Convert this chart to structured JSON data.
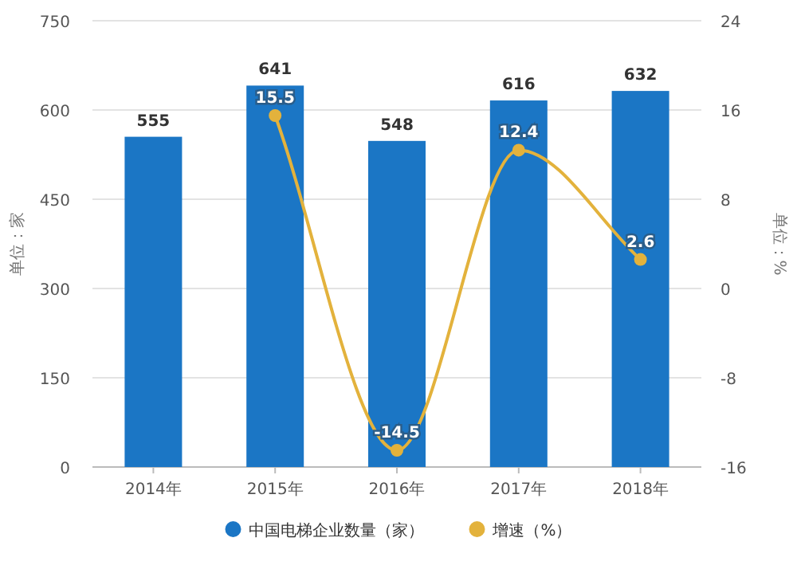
{
  "chart_data": {
    "type": "bar",
    "categories": [
      "2014年",
      "2015年",
      "2016年",
      "2017年",
      "2018年"
    ],
    "series": [
      {
        "name": "中国电梯企业数量（家）",
        "color": "#1b76c5",
        "values": [
          555,
          641,
          548,
          616,
          632
        ]
      },
      {
        "name": "增速（%）",
        "type": "line",
        "axis": "y2",
        "color": "#e3b23c",
        "values": [
          null,
          15.5,
          -14.5,
          12.4,
          2.6
        ],
        "marker": "circle"
      }
    ],
    "ylabel": "单位：家",
    "y2label": "单位：%",
    "ylim": [
      0,
      750
    ],
    "yticks": [
      0,
      150,
      300,
      450,
      600,
      750
    ],
    "y2lim": [
      -16,
      24
    ],
    "y2ticks": [
      -16,
      -8,
      0,
      8,
      16,
      24
    ],
    "grid": "y",
    "legend": "bottom",
    "data_labels": true
  }
}
